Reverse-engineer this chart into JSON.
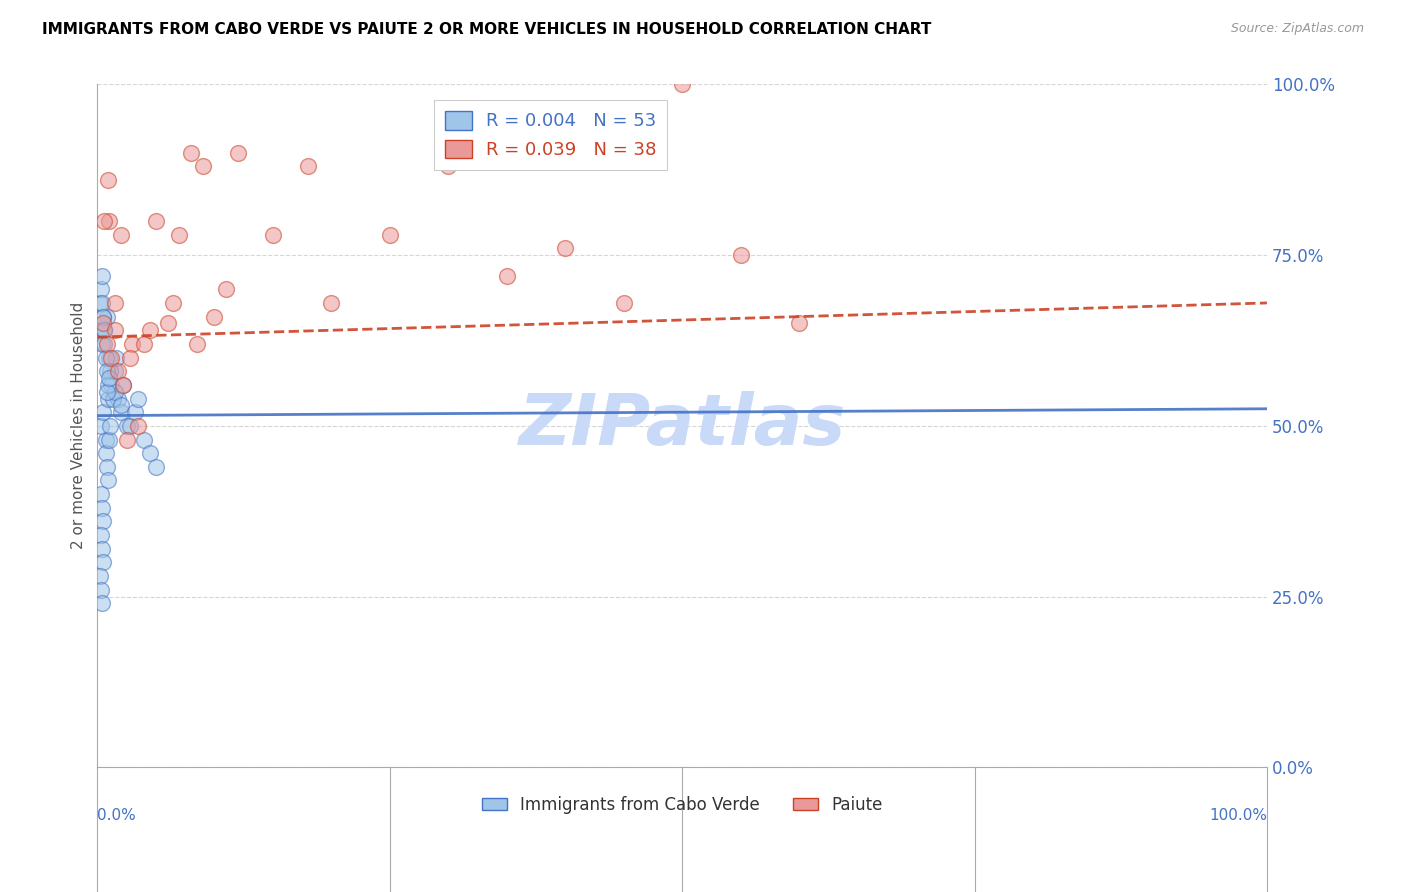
{
  "title": "IMMIGRANTS FROM CABO VERDE VS PAIUTE 2 OR MORE VEHICLES IN HOUSEHOLD CORRELATION CHART",
  "source": "Source: ZipAtlas.com",
  "ylabel": "2 or more Vehicles in Household",
  "ytick_values": [
    0,
    25,
    50,
    75,
    100
  ],
  "xlim": [
    0,
    100
  ],
  "ylim": [
    0,
    100
  ],
  "legend_label1": "Immigrants from Cabo Verde",
  "legend_label2": "Paiute",
  "r1": "0.004",
  "n1": "53",
  "r2": "0.039",
  "n2": "38",
  "color_blue": "#9fc5e8",
  "color_pink": "#ea9999",
  "color_blue_dark": "#4472c4",
  "color_pink_dark": "#cc4125",
  "color_axis": "#4472c4",
  "color_title": "#000000",
  "color_source": "#999999",
  "background_color": "#ffffff",
  "watermark_text": "ZIPatlas",
  "watermark_color": "#c9daf8",
  "cabo_x": [
    0.3,
    0.5,
    0.7,
    0.9,
    1.0,
    1.2,
    1.5,
    1.8,
    2.0,
    2.2,
    2.5,
    0.4,
    0.6,
    0.8,
    1.1,
    1.3,
    1.6,
    0.2,
    0.3,
    0.4,
    0.5,
    0.6,
    0.7,
    0.8,
    0.9,
    1.0,
    1.1,
    0.3,
    0.4,
    0.5,
    0.3,
    0.4,
    0.5,
    0.2,
    0.3,
    0.4,
    2.8,
    3.2,
    3.5,
    4.0,
    4.5,
    5.0,
    1.5,
    2.0,
    0.6,
    0.7,
    0.8,
    0.9,
    0.4,
    0.5,
    0.6,
    0.8,
    1.0
  ],
  "cabo_y": [
    50,
    52,
    48,
    54,
    60,
    56,
    58,
    54,
    52,
    56,
    50,
    62,
    64,
    66,
    58,
    54,
    60,
    68,
    70,
    72,
    66,
    64,
    46,
    44,
    42,
    48,
    50,
    40,
    38,
    36,
    34,
    32,
    30,
    28,
    26,
    24,
    50,
    52,
    54,
    48,
    46,
    44,
    55,
    53,
    62,
    60,
    58,
    56,
    68,
    66,
    64,
    55,
    57
  ],
  "paiute_x": [
    0.5,
    0.8,
    1.0,
    1.5,
    2.0,
    2.5,
    3.0,
    4.0,
    5.0,
    6.0,
    7.0,
    8.0,
    9.0,
    10.0,
    12.0,
    15.0,
    18.0,
    20.0,
    25.0,
    30.0,
    35.0,
    40.0,
    45.0,
    50.0,
    55.0,
    1.2,
    1.8,
    2.2,
    3.5,
    0.6,
    0.9,
    1.5,
    2.8,
    4.5,
    6.5,
    8.5,
    11.0,
    60.0
  ],
  "paiute_y": [
    65,
    62,
    80,
    68,
    78,
    48,
    62,
    62,
    80,
    65,
    78,
    90,
    88,
    66,
    90,
    78,
    88,
    68,
    78,
    88,
    72,
    76,
    68,
    100,
    75,
    60,
    58,
    56,
    50,
    80,
    86,
    64,
    60,
    64,
    68,
    62,
    70,
    65
  ],
  "cabo_trend_x": [
    0,
    100
  ],
  "cabo_trend_y": [
    51.5,
    52.5
  ],
  "paiute_trend_x": [
    0,
    100
  ],
  "paiute_trend_y": [
    63,
    68
  ]
}
